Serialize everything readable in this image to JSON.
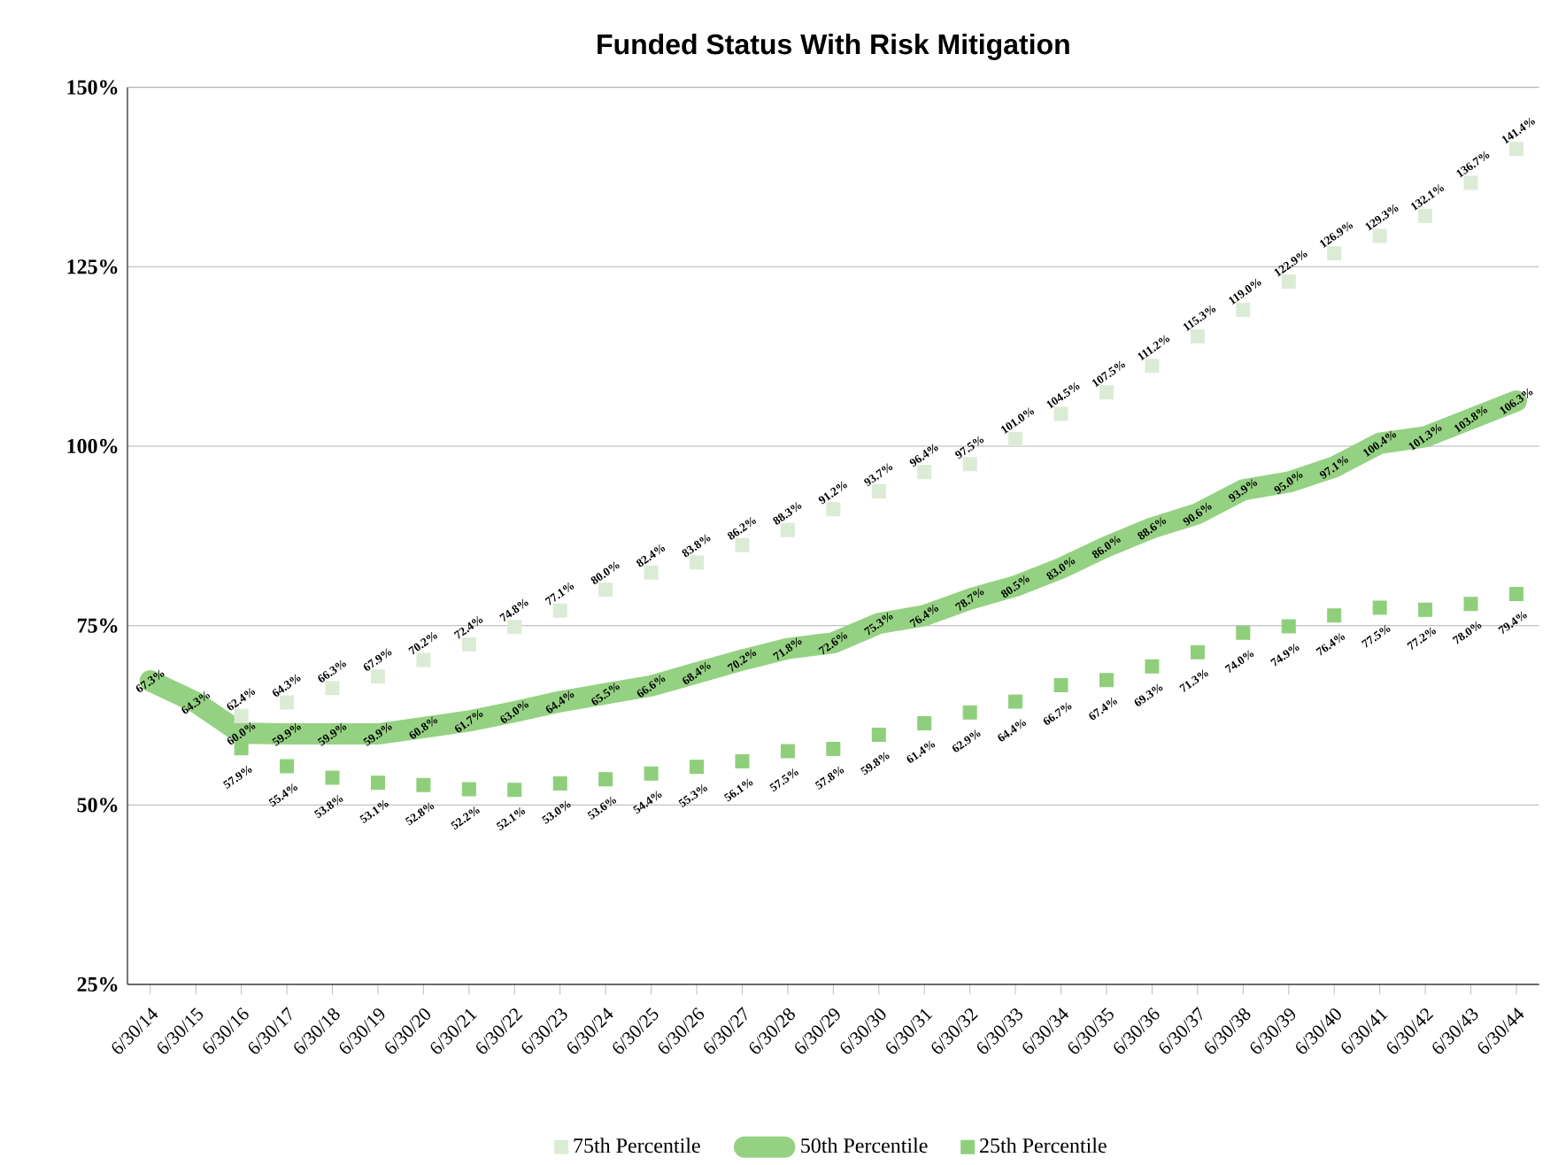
{
  "chart_data": {
    "type": "line",
    "title": "Funded Status With Risk Mitigation",
    "categories": [
      "6/30/14",
      "6/30/15",
      "6/30/16",
      "6/30/17",
      "6/30/18",
      "6/30/19",
      "6/30/20",
      "6/30/21",
      "6/30/22",
      "6/30/23",
      "6/30/24",
      "6/30/25",
      "6/30/26",
      "6/30/27",
      "6/30/28",
      "6/30/29",
      "6/30/30",
      "6/30/31",
      "6/30/32",
      "6/30/33",
      "6/30/34",
      "6/30/35",
      "6/30/36",
      "6/30/37",
      "6/30/38",
      "6/30/39",
      "6/30/40",
      "6/30/41",
      "6/30/42",
      "6/30/43",
      "6/30/44"
    ],
    "series": [
      {
        "name": "75th Percentile",
        "type": "scatter",
        "marker": "square",
        "color": "#dcebd6",
        "values": [
          null,
          null,
          62.4,
          64.3,
          66.3,
          67.9,
          70.2,
          72.4,
          74.8,
          77.1,
          80.0,
          82.4,
          83.8,
          86.2,
          88.3,
          91.2,
          93.7,
          96.4,
          97.5,
          101.0,
          104.5,
          107.5,
          111.2,
          115.3,
          119.0,
          122.9,
          126.9,
          129.3,
          132.1,
          136.7,
          141.4
        ],
        "value_labels": [
          null,
          null,
          "62.4%",
          "64.3%",
          "66.3%",
          "67.9%",
          "70.2%",
          "72.4%",
          "74.8%",
          "77.1%",
          "80.0%",
          "82.4%",
          "83.8%",
          "86.2%",
          "88.3%",
          "91.2%",
          "93.7%",
          "96.4%",
          "97.5%",
          "101.0%",
          "104.5%",
          "107.5%",
          "111.2%",
          "115.3%",
          "119.0%",
          "122.9%",
          "126.9%",
          "129.3%",
          "132.1%",
          "136.7%",
          "141.4%"
        ]
      },
      {
        "name": "50th Percentile",
        "marker": "none",
        "color": "#95d182",
        "values": [
          67.3,
          64.3,
          60.0,
          59.9,
          59.9,
          59.9,
          60.8,
          61.7,
          63.0,
          64.4,
          65.5,
          66.6,
          68.4,
          70.2,
          71.8,
          72.6,
          75.3,
          76.4,
          78.7,
          80.5,
          83.0,
          86.0,
          88.6,
          90.6,
          93.9,
          95.0,
          97.1,
          100.4,
          101.3,
          103.8,
          106.3
        ],
        "value_labels": [
          "67.3%",
          "64.3%",
          "60.0%",
          "59.9%",
          "59.9%",
          "59.9%",
          "60.8%",
          "61.7%",
          "63.0%",
          "64.4%",
          "65.5%",
          "66.6%",
          "68.4%",
          "70.2%",
          "71.8%",
          "72.6%",
          "75.3%",
          "76.4%",
          "78.7%",
          "80.5%",
          "83.0%",
          "86.0%",
          "88.6%",
          "90.6%",
          "93.9%",
          "95.0%",
          "97.1%",
          "100.4%",
          "101.3%",
          "103.8%",
          "106.3%"
        ]
      },
      {
        "name": "25th Percentile",
        "type": "scatter",
        "marker": "square",
        "color": "#8fcf7c",
        "values": [
          null,
          null,
          57.9,
          55.4,
          53.8,
          53.1,
          52.8,
          52.2,
          52.1,
          53.0,
          53.6,
          54.4,
          55.3,
          56.1,
          57.5,
          57.8,
          59.8,
          61.4,
          62.9,
          64.4,
          66.7,
          67.4,
          69.3,
          71.3,
          74.0,
          74.9,
          76.4,
          77.5,
          77.2,
          78.0,
          79.4
        ],
        "value_labels": [
          null,
          null,
          "57.9%",
          "55.4%",
          "53.8%",
          "53.1%",
          "52.8%",
          "52.2%",
          "52.1%",
          "53.0%",
          "53.6%",
          "54.4%",
          "55.3%",
          "56.1%",
          "57.5%",
          "57.8%",
          "59.8%",
          "61.4%",
          "62.9%",
          "64.4%",
          "66.7%",
          "67.4%",
          "69.3%",
          "71.3%",
          "74.0%",
          "74.9%",
          "76.4%",
          "77.5%",
          "77.2%",
          "78.0%",
          "79.4%"
        ]
      }
    ],
    "ylim": [
      25,
      150
    ],
    "yticks": [
      {
        "value": 25,
        "label": "25%"
      },
      {
        "value": 50,
        "label": "50%"
      },
      {
        "value": 75,
        "label": "75%"
      },
      {
        "value": 100,
        "label": "100%"
      },
      {
        "value": 125,
        "label": "125%"
      },
      {
        "value": 150,
        "label": "150%"
      }
    ],
    "grid": "y",
    "legend": "bottom"
  }
}
